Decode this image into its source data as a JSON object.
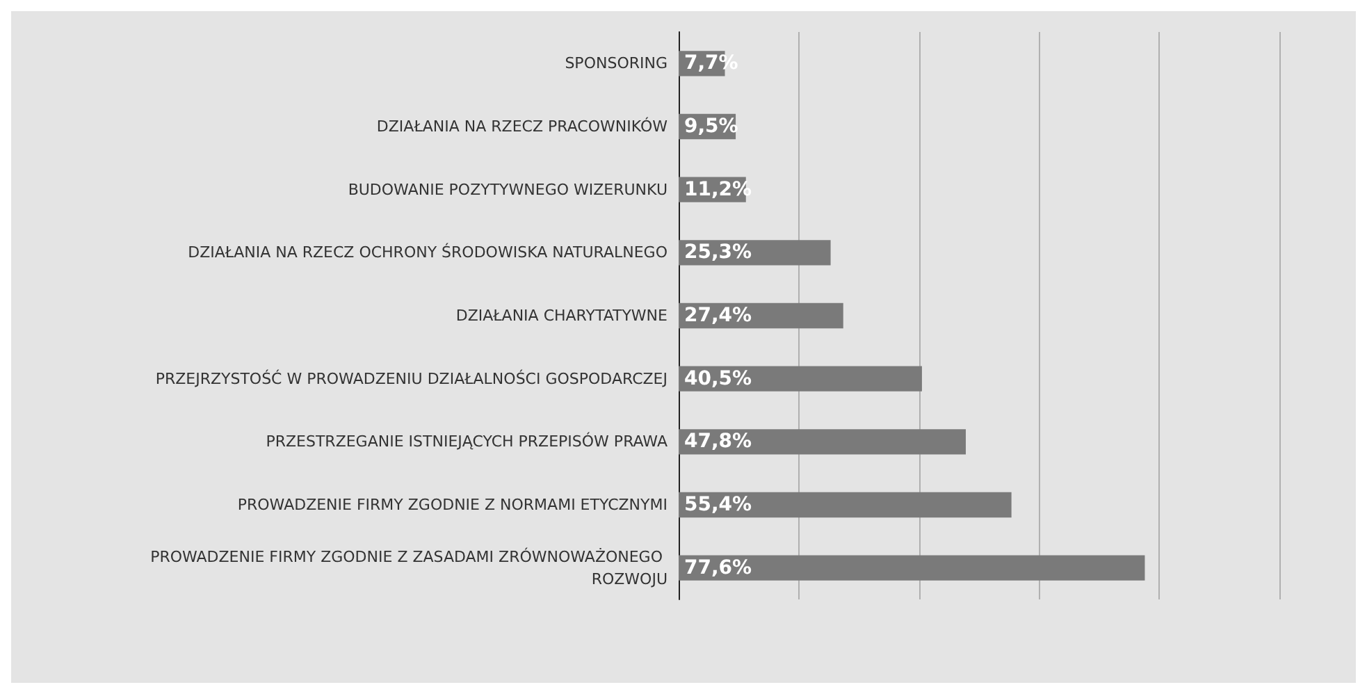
{
  "chart_data": {
    "type": "bar",
    "orientation": "horizontal",
    "categories": [
      "SPONSORING",
      "DZIAŁANIA NA RZECZ PRACOWNIKÓW",
      "BUDOWANIE POZYTYWNEGO WIZERUNKU",
      "DZIAŁANIA NA RZECZ OCHRONY ŚRODOWISKA NATURALNEGO",
      "DZIAŁANIA CHARYTATYWNE",
      "PRZEJRZYSTOŚĆ W PROWADZENIU DZIAŁALNOŚCI GOSPODARCZEJ",
      "PRZESTRZEGANIE ISTNIEJĄCYCH PRZEPISÓW PRAWA",
      "PROWADZENIE FIRMY ZGODNIE Z NORMAMI ETYCZNYMI",
      "PROWADZENIE FIRMY ZGODNIE Z ZASADAMI ZRÓWNOWAŻONEGO ROZWOJU"
    ],
    "values": [
      7.7,
      9.5,
      11.2,
      25.3,
      27.4,
      40.5,
      47.8,
      55.4,
      77.6
    ],
    "value_labels": [
      "7,7%",
      "9,5%",
      "11,2%",
      "25,3%",
      "27,4%",
      "40,5%",
      "47,8%",
      "55,4%",
      "77,6%"
    ],
    "color": "#7a7a7a",
    "xlim": [
      0,
      100
    ],
    "xticks": [
      {
        "value": 0,
        "label": null
      },
      {
        "value": 20,
        "label": null
      },
      {
        "value": 40,
        "label": null
      },
      {
        "value": 60,
        "label": null
      },
      {
        "value": 80,
        "label": null
      },
      {
        "value": 100,
        "label": null
      }
    ],
    "tick_labels": "y",
    "grid": "x"
  }
}
